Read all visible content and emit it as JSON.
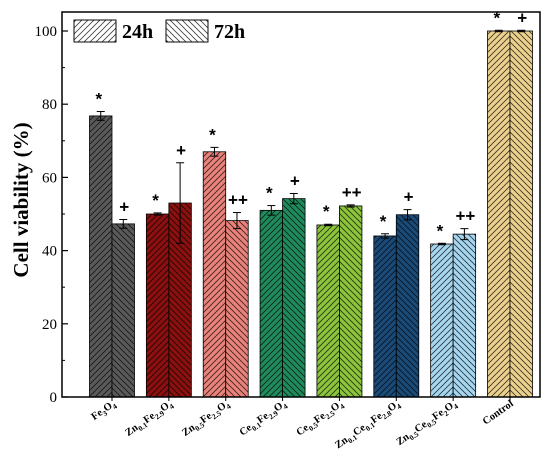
{
  "chart_data": {
    "type": "bar",
    "ylabel": "Cell viability (%)",
    "ylim": [
      0,
      100
    ],
    "yticks": [
      0,
      20,
      40,
      60,
      80,
      100
    ],
    "categories": [
      {
        "parts": [
          [
            "Fe",
            false
          ],
          [
            "3",
            true
          ],
          [
            "O",
            false
          ],
          [
            "4",
            true
          ]
        ]
      },
      {
        "parts": [
          [
            "Zn",
            false
          ],
          [
            "0.1",
            true
          ],
          [
            "Fe",
            false
          ],
          [
            "2.9",
            true
          ],
          [
            "O",
            false
          ],
          [
            "4",
            true
          ]
        ]
      },
      {
        "parts": [
          [
            "Zn",
            false
          ],
          [
            "0.5",
            true
          ],
          [
            "Fe",
            false
          ],
          [
            "2.5",
            true
          ],
          [
            "O",
            false
          ],
          [
            "4",
            true
          ]
        ]
      },
      {
        "parts": [
          [
            "Ce",
            false
          ],
          [
            "0.1",
            true
          ],
          [
            "Fe",
            false
          ],
          [
            "2.9",
            true
          ],
          [
            "O",
            false
          ],
          [
            "4",
            true
          ]
        ]
      },
      {
        "parts": [
          [
            "Ce",
            false
          ],
          [
            "0.5",
            true
          ],
          [
            "Fe",
            false
          ],
          [
            "2.5",
            true
          ],
          [
            "O",
            false
          ],
          [
            "4",
            true
          ]
        ]
      },
      {
        "parts": [
          [
            "Zn",
            false
          ],
          [
            "0.1",
            true
          ],
          [
            "Ce",
            false
          ],
          [
            "0.1",
            true
          ],
          [
            "Fe",
            false
          ],
          [
            "2.8",
            true
          ],
          [
            "O",
            false
          ],
          [
            "4",
            true
          ]
        ]
      },
      {
        "parts": [
          [
            "Zn",
            false
          ],
          [
            "0.5",
            true
          ],
          [
            "Ce",
            false
          ],
          [
            "0.5",
            true
          ],
          [
            "Fe",
            false
          ],
          [
            "2",
            true
          ],
          [
            "O",
            false
          ],
          [
            "4",
            true
          ]
        ]
      },
      {
        "parts": [
          [
            "Control",
            false
          ]
        ]
      }
    ],
    "colors": [
      "#5a5a5a",
      "#8b1010",
      "#e8827a",
      "#1f8a5c",
      "#8cc43c",
      "#1a4a78",
      "#a6d6f0",
      "#ecd08e"
    ],
    "series": [
      {
        "name": "24h",
        "values": [
          76.8,
          50.0,
          67.0,
          51.0,
          47.0,
          44.0,
          41.8,
          100.0
        ],
        "errors": [
          1.2,
          0.3,
          1.2,
          1.3,
          0.2,
          0.6,
          0.2,
          0.2
        ],
        "annotations": [
          "*",
          "*",
          "*",
          "*",
          "*",
          "*",
          "*",
          "*"
        ]
      },
      {
        "name": "72h",
        "values": [
          47.3,
          53.0,
          48.2,
          54.2,
          52.2,
          49.8,
          44.5,
          100.0
        ],
        "errors": [
          1.2,
          11.0,
          2.2,
          1.4,
          0.3,
          1.4,
          1.5,
          0.2
        ],
        "annotations": [
          "+",
          "+",
          "++",
          "+",
          "++",
          "+",
          "++",
          "+"
        ]
      }
    ],
    "legend": {
      "position": "top-left",
      "entries": [
        "24h",
        "72h"
      ]
    }
  }
}
